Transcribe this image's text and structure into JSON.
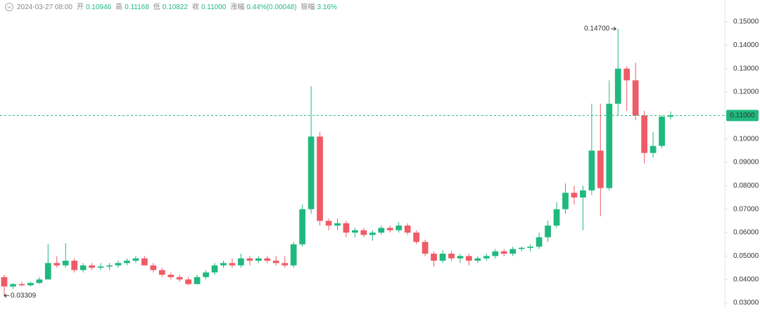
{
  "chart_data": {
    "type": "candlestick",
    "time": "2024-03-27 08:00",
    "info": [
      {
        "label": "开",
        "value": "0.10946"
      },
      {
        "label": "高",
        "value": "0.11168"
      },
      {
        "label": "低",
        "value": "0.10822"
      },
      {
        "label": "收",
        "value": "0.11000"
      },
      {
        "label": "涨幅",
        "value": "0.44%(0.00048)"
      },
      {
        "label": "振幅",
        "value": "3.16%"
      }
    ],
    "up_color": "#1fb97f",
    "down_color": "#ef5b66",
    "open": [
      0.041,
      0.037,
      0.038,
      0.0375,
      0.0385,
      0.04,
      0.047,
      0.046,
      0.048,
      0.044,
      0.046,
      0.045,
      0.0455,
      0.046,
      0.047,
      0.048,
      0.049,
      0.046,
      0.044,
      0.042,
      0.041,
      0.04,
      0.038,
      0.041,
      0.043,
      0.046,
      0.047,
      0.046,
      0.049,
      0.048,
      0.049,
      0.048,
      0.047,
      0.046,
      0.055,
      0.07,
      0.101,
      0.065,
      0.063,
      0.064,
      0.06,
      0.061,
      0.059,
      0.06,
      0.062,
      0.061,
      0.063,
      0.06,
      0.056,
      0.051,
      0.048,
      0.051,
      0.049,
      0.05,
      0.048,
      0.049,
      0.05,
      0.052,
      0.051,
      0.053,
      0.0535,
      0.054,
      0.058,
      0.063,
      0.07,
      0.077,
      0.075,
      0.078,
      0.095,
      0.079,
      0.115,
      0.13,
      0.125,
      0.11,
      0.094,
      0.097,
      0.10946
    ],
    "high": [
      0.042,
      0.0385,
      0.039,
      0.039,
      0.041,
      0.055,
      0.05,
      0.0555,
      0.049,
      0.047,
      0.047,
      0.047,
      0.047,
      0.048,
      0.049,
      0.05,
      0.05,
      0.047,
      0.045,
      0.043,
      0.042,
      0.041,
      0.042,
      0.044,
      0.047,
      0.048,
      0.049,
      0.051,
      0.05,
      0.05,
      0.05,
      0.05,
      0.05,
      0.056,
      0.072,
      0.1225,
      0.103,
      0.066,
      0.066,
      0.065,
      0.062,
      0.062,
      0.061,
      0.063,
      0.063,
      0.0645,
      0.064,
      0.061,
      0.057,
      0.052,
      0.0525,
      0.052,
      0.051,
      0.051,
      0.05,
      0.051,
      0.053,
      0.053,
      0.054,
      0.054,
      0.055,
      0.06,
      0.065,
      0.073,
      0.081,
      0.08,
      0.08,
      0.115,
      0.115,
      0.125,
      0.147,
      0.131,
      0.1325,
      0.112,
      0.103,
      0.11,
      0.11168
    ],
    "low": [
      0.03309,
      0.036,
      0.037,
      0.037,
      0.038,
      0.04,
      0.045,
      0.045,
      0.043,
      0.043,
      0.044,
      0.044,
      0.044,
      0.045,
      0.046,
      0.047,
      0.046,
      0.043,
      0.041,
      0.04,
      0.039,
      0.0375,
      0.038,
      0.04,
      0.042,
      0.045,
      0.045,
      0.045,
      0.046,
      0.047,
      0.047,
      0.046,
      0.045,
      0.045,
      0.054,
      0.068,
      0.063,
      0.061,
      0.061,
      0.058,
      0.058,
      0.058,
      0.0565,
      0.059,
      0.06,
      0.06,
      0.059,
      0.055,
      0.05,
      0.0455,
      0.047,
      0.048,
      0.047,
      0.046,
      0.047,
      0.048,
      0.049,
      0.05,
      0.05,
      0.052,
      0.052,
      0.053,
      0.056,
      0.062,
      0.068,
      0.072,
      0.061,
      0.076,
      0.067,
      0.078,
      0.11,
      0.112,
      0.108,
      0.0895,
      0.092,
      0.096,
      0.10822
    ],
    "close": [
      0.037,
      0.038,
      0.0375,
      0.0385,
      0.04,
      0.047,
      0.046,
      0.048,
      0.044,
      0.046,
      0.045,
      0.0455,
      0.046,
      0.047,
      0.048,
      0.049,
      0.046,
      0.044,
      0.042,
      0.041,
      0.04,
      0.038,
      0.041,
      0.043,
      0.046,
      0.047,
      0.046,
      0.049,
      0.048,
      0.049,
      0.048,
      0.047,
      0.046,
      0.055,
      0.07,
      0.101,
      0.065,
      0.063,
      0.064,
      0.06,
      0.061,
      0.059,
      0.06,
      0.062,
      0.061,
      0.063,
      0.06,
      0.056,
      0.051,
      0.048,
      0.051,
      0.049,
      0.05,
      0.048,
      0.049,
      0.05,
      0.052,
      0.051,
      0.053,
      0.0535,
      0.054,
      0.058,
      0.063,
      0.07,
      0.077,
      0.075,
      0.078,
      0.095,
      0.079,
      0.115,
      0.13,
      0.125,
      0.11,
      0.094,
      0.097,
      0.1095,
      0.11
    ],
    "ylim": [
      0.03,
      0.15
    ],
    "yticks": [
      {
        "value": 0.03,
        "label": "0.03000"
      },
      {
        "value": 0.04,
        "label": "0.04000"
      },
      {
        "value": 0.05,
        "label": "0.05000"
      },
      {
        "value": 0.06,
        "label": "0.06000"
      },
      {
        "value": 0.07,
        "label": "0.07000"
      },
      {
        "value": 0.08,
        "label": "0.08000"
      },
      {
        "value": 0.09,
        "label": "0.09000"
      },
      {
        "value": 0.1,
        "label": "0.10000"
      },
      {
        "value": 0.11,
        "label": "0.11000"
      },
      {
        "value": 0.12,
        "label": "0.12000"
      },
      {
        "value": 0.13,
        "label": "0.13000"
      },
      {
        "value": 0.14,
        "label": "0.14000"
      },
      {
        "value": 0.15,
        "label": "0.15000"
      }
    ],
    "current_price": {
      "value": 0.11,
      "label": "0.11000"
    },
    "max_label": {
      "value": 0.147,
      "label": "0.14700"
    },
    "min_label": {
      "value": 0.03309,
      "label": "0.03309"
    }
  }
}
